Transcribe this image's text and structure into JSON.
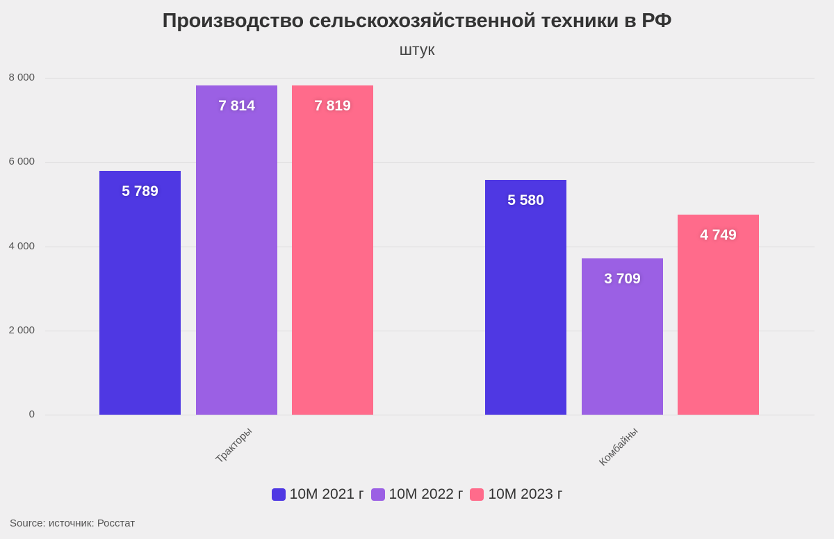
{
  "header": {
    "title": "Производство сельскохозяйственной техники в РФ",
    "subtitle": "штук"
  },
  "footer": {
    "source": "Source: источник: Росстат"
  },
  "legend": [
    {
      "label": "10М 2021 г",
      "color": "#4f38e3"
    },
    {
      "label": "10М 2022 г",
      "color": "#9b60e4"
    },
    {
      "label": "10М 2023 г",
      "color": "#ff6b8b"
    }
  ],
  "axis": {
    "y_ticks": [
      "0",
      "2 000",
      "4 000",
      "6 000",
      "8 000"
    ]
  },
  "chart_data": {
    "type": "bar",
    "title": "Производство сельскохозяйственной техники в РФ",
    "subtitle": "штук",
    "xlabel": "",
    "ylabel": "",
    "categories": [
      "Тракторы",
      "Комбайны"
    ],
    "series": [
      {
        "name": "10М 2021 г",
        "color": "#4f38e3",
        "values": [
          5789,
          5580
        ],
        "labels": [
          "5 789",
          "5 580"
        ]
      },
      {
        "name": "10М 2022 г",
        "color": "#9b60e4",
        "values": [
          7814,
          3709
        ],
        "labels": [
          "7 814",
          "3 709"
        ]
      },
      {
        "name": "10М 2023 г",
        "color": "#ff6b8b",
        "values": [
          7819,
          4749
        ],
        "labels": [
          "7 819",
          "4 749"
        ]
      }
    ],
    "ylim": [
      0,
      8000
    ],
    "y_ticks": [
      0,
      2000,
      4000,
      6000,
      8000
    ],
    "grid": true,
    "legend_position": "bottom",
    "source": "источник: Росстат"
  }
}
